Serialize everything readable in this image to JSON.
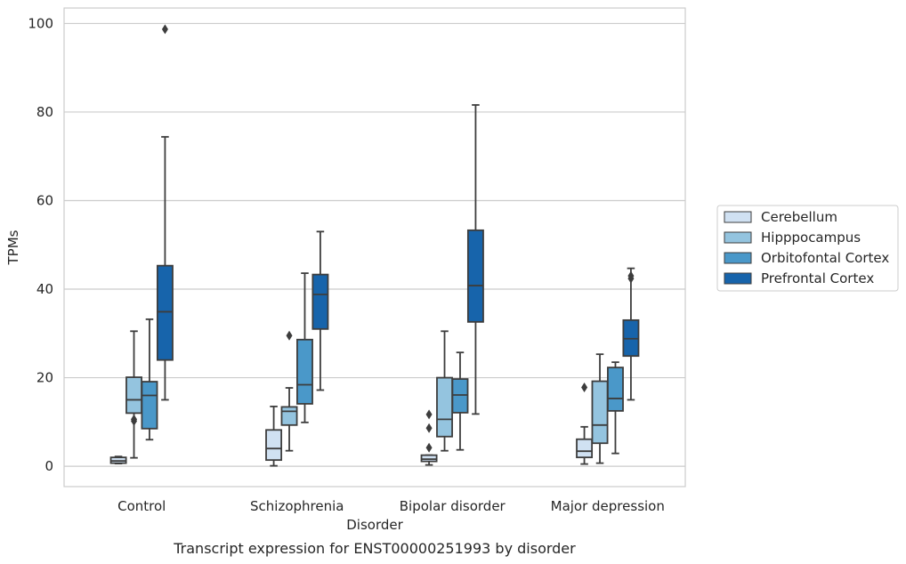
{
  "chart_data": {
    "type": "boxplot",
    "title": "",
    "caption": "Transcript expression for ENST00000251993 by disorder",
    "xlabel": "Disorder",
    "ylabel": "TPMs",
    "ylim": [
      -4.6,
      103.5
    ],
    "yticks": [
      0,
      20,
      40,
      60,
      80,
      100
    ],
    "grid": "horizontal",
    "legend_position": "right",
    "categories": [
      "Control",
      "Schizophrenia",
      "Bipolar disorder",
      "Major depression"
    ],
    "series": [
      {
        "name": "Cerebellum",
        "color": "#d0e1f2",
        "boxes": [
          {
            "whisker_low": 0.6,
            "q1": 0.7,
            "median": 1.2,
            "q3": 2.0,
            "whisker_high": 2.2,
            "outliers": []
          },
          {
            "whisker_low": 0.1,
            "q1": 1.4,
            "median": 4.0,
            "q3": 8.2,
            "whisker_high": 13.5,
            "outliers": []
          },
          {
            "whisker_low": 0.3,
            "q1": 1.1,
            "median": 1.6,
            "q3": 2.5,
            "whisker_high": 2.5,
            "outliers": [
              4.2,
              8.6,
              11.7
            ]
          },
          {
            "whisker_low": 0.5,
            "q1": 2.0,
            "median": 3.4,
            "q3": 6.1,
            "whisker_high": 8.9,
            "outliers": [
              17.8
            ]
          }
        ]
      },
      {
        "name": "Hipppocampus",
        "color": "#94c4df",
        "boxes": [
          {
            "whisker_low": 1.9,
            "q1": 12.0,
            "median": 15.0,
            "q3": 20.1,
            "whisker_high": 30.5,
            "outliers": [
              10.2,
              10.6
            ]
          },
          {
            "whisker_low": 3.5,
            "q1": 9.3,
            "median": 12.4,
            "q3": 13.4,
            "whisker_high": 17.7,
            "outliers": [
              29.5
            ]
          },
          {
            "whisker_low": 3.5,
            "q1": 6.7,
            "median": 10.6,
            "q3": 20.0,
            "whisker_high": 30.5,
            "outliers": []
          },
          {
            "whisker_low": 0.7,
            "q1": 5.2,
            "median": 9.3,
            "q3": 19.2,
            "whisker_high": 25.3,
            "outliers": []
          }
        ]
      },
      {
        "name": "Orbitofontal Cortex",
        "color": "#4a98c9",
        "boxes": [
          {
            "whisker_low": 6.0,
            "q1": 8.5,
            "median": 16.0,
            "q3": 19.1,
            "whisker_high": 33.2,
            "outliers": []
          },
          {
            "whisker_low": 9.9,
            "q1": 14.1,
            "median": 18.4,
            "q3": 28.6,
            "whisker_high": 43.6,
            "outliers": []
          },
          {
            "whisker_low": 3.7,
            "q1": 12.1,
            "median": 16.1,
            "q3": 19.7,
            "whisker_high": 25.7,
            "outliers": []
          },
          {
            "whisker_low": 2.9,
            "q1": 12.5,
            "median": 15.3,
            "q3": 22.3,
            "whisker_high": 23.5,
            "outliers": []
          }
        ]
      },
      {
        "name": "Prefrontal Cortex",
        "color": "#1764ab",
        "boxes": [
          {
            "whisker_low": 15.0,
            "q1": 24.0,
            "median": 34.9,
            "q3": 45.3,
            "whisker_high": 74.4,
            "outliers": [
              98.7
            ]
          },
          {
            "whisker_low": 17.2,
            "q1": 31.0,
            "median": 38.8,
            "q3": 43.3,
            "whisker_high": 53.0,
            "outliers": []
          },
          {
            "whisker_low": 11.8,
            "q1": 32.6,
            "median": 40.8,
            "q3": 53.3,
            "whisker_high": 81.6,
            "outliers": []
          },
          {
            "whisker_low": 15.0,
            "q1": 24.9,
            "median": 28.8,
            "q3": 33.0,
            "whisker_high": 44.7,
            "outliers": [
              42.4,
              43.0
            ]
          }
        ]
      }
    ]
  }
}
